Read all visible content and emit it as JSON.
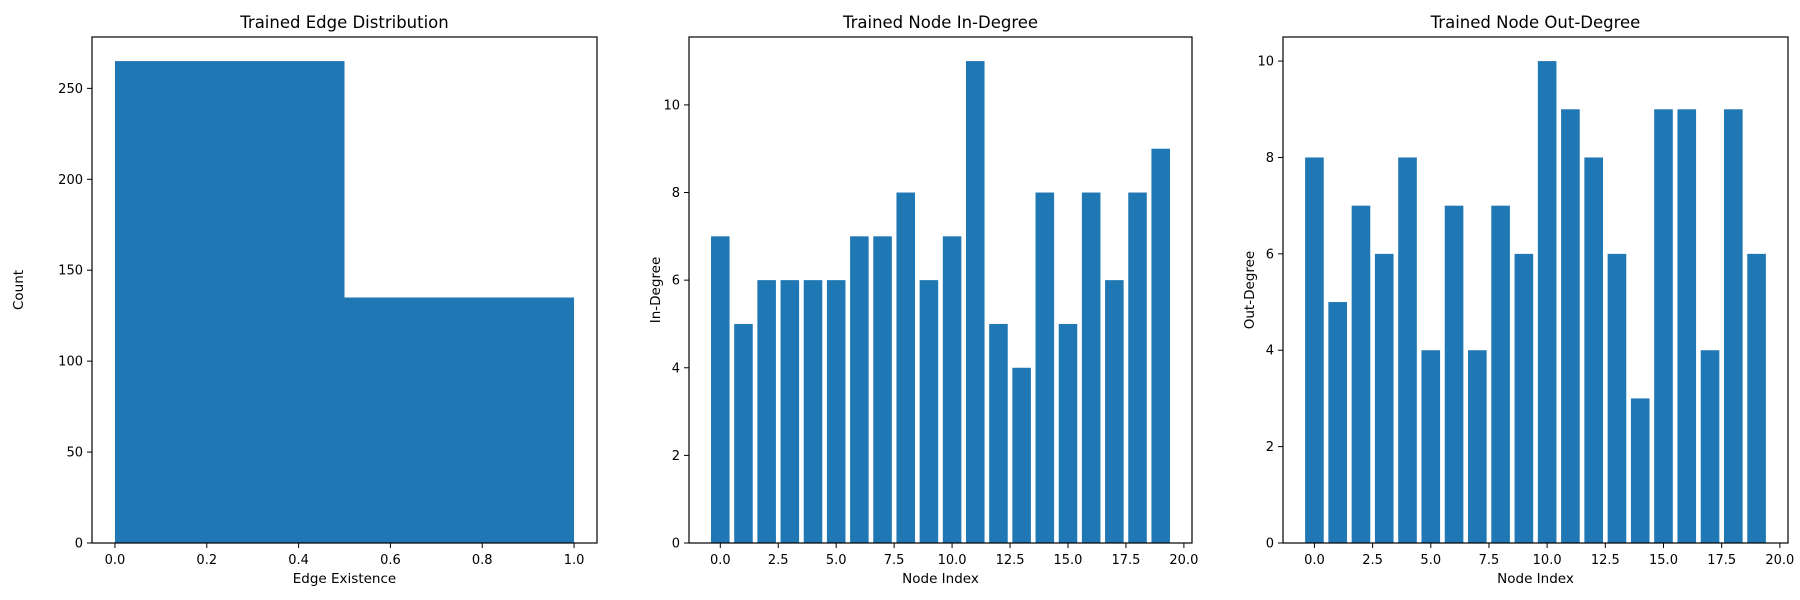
{
  "chart_data": [
    {
      "type": "bar",
      "title": "Trained Edge Distribution",
      "xlabel": "Edge Existence",
      "ylabel": "Count",
      "bins": [
        {
          "x0": 0.0,
          "x1": 0.5,
          "value": 265
        },
        {
          "x0": 0.5,
          "x1": 1.0,
          "value": 135
        }
      ],
      "xlim": [
        -0.05,
        1.05
      ],
      "ylim": [
        0,
        278.25
      ],
      "xticks": [
        0.0,
        0.2,
        0.4,
        0.6,
        0.8,
        1.0
      ],
      "xtick_labels": [
        "0.0",
        "0.2",
        "0.4",
        "0.6",
        "0.8",
        "1.0"
      ],
      "yticks": [
        0,
        50,
        100,
        150,
        200,
        250
      ],
      "ytick_labels": [
        "0",
        "50",
        "100",
        "150",
        "200",
        "250"
      ],
      "grid": false,
      "color": "#1f77b4"
    },
    {
      "type": "bar",
      "title": "Trained Node In-Degree",
      "xlabel": "Node Index",
      "ylabel": "In-Degree",
      "x": [
        0,
        1,
        2,
        3,
        4,
        5,
        6,
        7,
        8,
        9,
        10,
        11,
        12,
        13,
        14,
        15,
        16,
        17,
        18,
        19
      ],
      "values": [
        7,
        5,
        6,
        6,
        6,
        6,
        7,
        7,
        8,
        6,
        7,
        11,
        5,
        4,
        8,
        5,
        8,
        6,
        8,
        9
      ],
      "xlim": [
        -1.35,
        20.35
      ],
      "ylim": [
        0,
        11.55
      ],
      "xticks": [
        0.0,
        2.5,
        5.0,
        7.5,
        10.0,
        12.5,
        15.0,
        17.5,
        20.0
      ],
      "xtick_labels": [
        "0.0",
        "2.5",
        "5.0",
        "7.5",
        "10.0",
        "12.5",
        "15.0",
        "17.5",
        "20.0"
      ],
      "yticks": [
        0,
        2,
        4,
        6,
        8,
        10
      ],
      "ytick_labels": [
        "0",
        "2",
        "4",
        "6",
        "8",
        "10"
      ],
      "grid": false,
      "color": "#1f77b4"
    },
    {
      "type": "bar",
      "title": "Trained Node Out-Degree",
      "xlabel": "Node Index",
      "ylabel": "Out-Degree",
      "x": [
        0,
        1,
        2,
        3,
        4,
        5,
        6,
        7,
        8,
        9,
        10,
        11,
        12,
        13,
        14,
        15,
        16,
        17,
        18,
        19
      ],
      "values": [
        8,
        5,
        7,
        6,
        8,
        4,
        7,
        4,
        7,
        6,
        10,
        9,
        8,
        6,
        3,
        9,
        9,
        4,
        9,
        6
      ],
      "xlim": [
        -1.35,
        20.35
      ],
      "ylim": [
        0,
        10.5
      ],
      "xticks": [
        0.0,
        2.5,
        5.0,
        7.5,
        10.0,
        12.5,
        15.0,
        17.5,
        20.0
      ],
      "xtick_labels": [
        "0.0",
        "2.5",
        "5.0",
        "7.5",
        "10.0",
        "12.5",
        "15.0",
        "17.5",
        "20.0"
      ],
      "yticks": [
        0,
        2,
        4,
        6,
        8,
        10
      ],
      "ytick_labels": [
        "0",
        "2",
        "4",
        "6",
        "8",
        "10"
      ],
      "grid": false,
      "color": "#1f77b4"
    }
  ]
}
